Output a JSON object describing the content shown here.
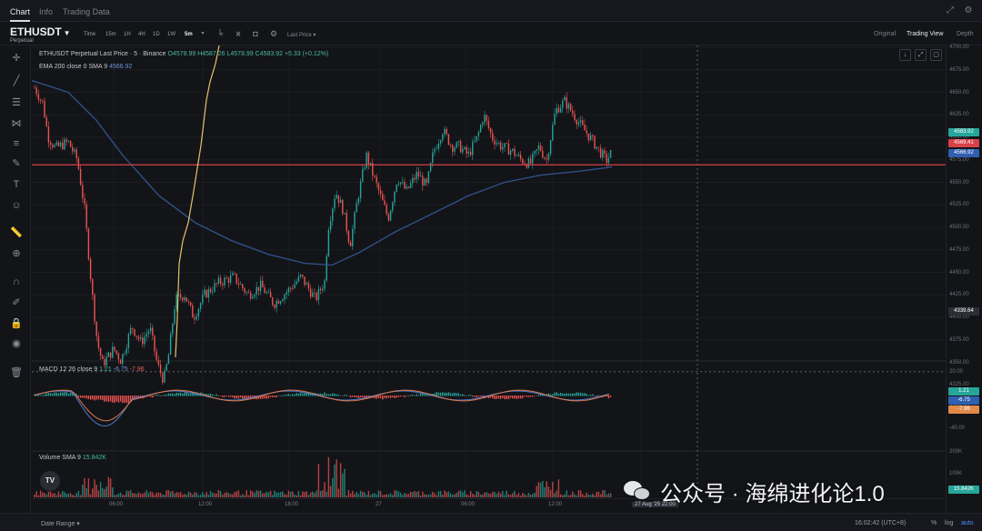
{
  "tabs": [
    {
      "label": "Chart",
      "active": true
    },
    {
      "label": "Info",
      "active": false
    },
    {
      "label": "Trading Data",
      "active": false
    }
  ],
  "toolbar": {
    "symbol": "ETHUSDT",
    "symbol_sub": "Perpetual",
    "timeframes": [
      "Time",
      "15m",
      "1H",
      "4H",
      "1D",
      "1W",
      "5m"
    ],
    "active_timeframe": "5m",
    "price_source": "Last Price",
    "views": [
      "Original",
      "Trading View",
      "Depth"
    ],
    "active_view": "Trading View"
  },
  "legend": {
    "main_title": "ETHUSDT Perpetual Last Price · 5 · Binance",
    "ohlc": "O4578.99 H4587.26 L4578.99 C4583.92 +5.33 (+0.12%)",
    "ema_label": "EMA 200 close 0 SMA 9",
    "ema_value": "4566.92",
    "macd_label": "MACD 12 26 close 9",
    "macd_v1": "1.21",
    "macd_v2": "-6.75",
    "macd_v3": "-7.96",
    "volume_label": "Volume SMA 9",
    "volume_value": "15.842K"
  },
  "price_axis": {
    "ticks": [
      "4700.00",
      "4675.00",
      "4650.00",
      "4625.00",
      "4600.00",
      "4575.00",
      "4550.00",
      "4525.00",
      "4500.00",
      "4475.00",
      "4450.00",
      "4425.00",
      "4400.00",
      "4375.00",
      "4350.00",
      "4325.00",
      "4300.00"
    ],
    "badges": {
      "last": "4583.92",
      "line": "4569.41",
      "ema": "4566.92",
      "crosshair": "4339.64"
    },
    "macd_ticks": [
      "20.00",
      "0.00",
      "-20.00",
      "-40.00"
    ],
    "macd_badges": [
      "1.21",
      "-6.75",
      "-7.96"
    ],
    "volume_ticks": [
      "200K",
      "100K"
    ],
    "volume_badge": "15.842K"
  },
  "time_axis": {
    "ticks": [
      "06:00",
      "12:00",
      "18:00",
      "27",
      "06:00",
      "12:00"
    ],
    "overlay": "27 Aug '25 22:00"
  },
  "bottom": {
    "date_range": "Date Range",
    "time": "16:02:42 (UTC+8)",
    "opts": [
      {
        "label": "%",
        "active": false
      },
      {
        "label": "log",
        "active": false
      },
      {
        "label": "auto",
        "active": true
      }
    ]
  },
  "watermark": {
    "text": "公众号 · 海绵进化论1.0"
  },
  "tv_logo": "TV",
  "colors": {
    "up": "#26a69a",
    "down": "#ef5350",
    "ema": "#2f4f86",
    "hline": "#d8414a",
    "volume_profile": "#e6c36a"
  }
}
